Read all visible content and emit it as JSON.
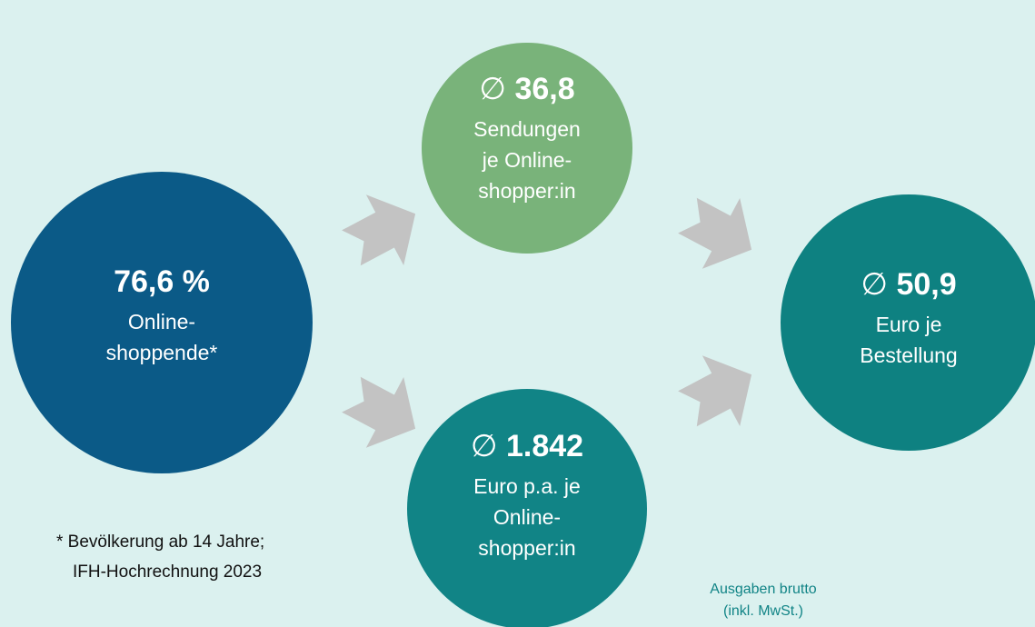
{
  "nodes": [
    {
      "value": "76,6 %",
      "lines": [
        "Online-",
        "shoppende*"
      ]
    },
    {
      "prefix": "∅",
      "value": "36,8",
      "lines": [
        "Sendungen",
        "je Online-",
        "shopper:in"
      ]
    },
    {
      "prefix": "∅",
      "value": "1.842",
      "lines": [
        "Euro p.a. je",
        "Online-",
        "shopper:in"
      ]
    },
    {
      "prefix": "∅",
      "value": "50,9",
      "lines": [
        "Euro je",
        "Bestellung"
      ]
    }
  ],
  "footnote": [
    "* Bevölkerung ab 14 Jahre;",
    "IFH-Hochrechnung 2023"
  ],
  "note": [
    "Ausgaben brutto",
    "(inkl. MwSt.)"
  ]
}
